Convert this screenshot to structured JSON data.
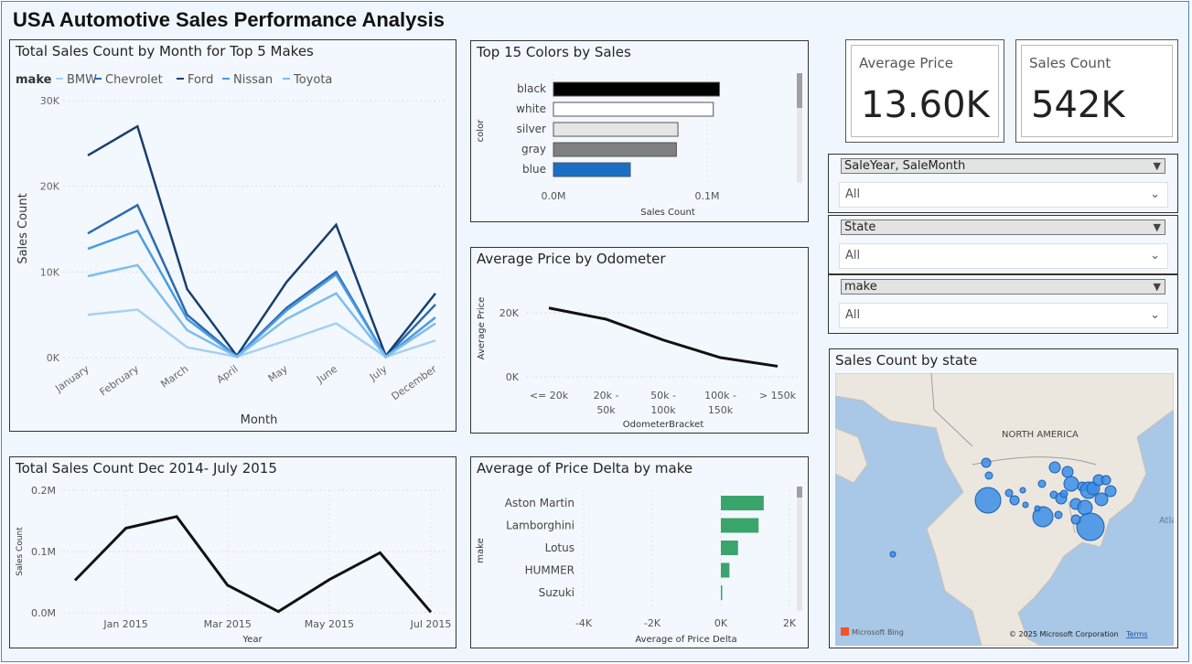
{
  "page": {
    "title": "USA Automotive Sales Performance Analysis"
  },
  "colors": {
    "bmw": "#a6d0f5",
    "chevrolet": "#2b6ab0",
    "ford": "#173f6e",
    "nissan": "#4a9be2",
    "toyota": "#7cbdf0",
    "bar_green": "#3aa56b",
    "map_bubble": "#3b8de8"
  },
  "line_chart": {
    "title": "Total Sales Count by Month for Top 5 Makes",
    "legend_title": "make",
    "y_ticks": [
      "30K",
      "20K",
      "10K",
      "0K"
    ],
    "xlabel": "Month",
    "ylabel": "Sales Count"
  },
  "colors_chart": {
    "title": "Top 15 Colors by Sales",
    "ylabel": "color",
    "xlabel": "Sales Count",
    "x_ticks": [
      "0.0M",
      "0.1M"
    ]
  },
  "odometer_chart": {
    "title": "Average Price by Odometer",
    "ylabel": "Average Price",
    "xlabel": "OdometerBracket",
    "y_ticks": [
      "20K",
      "0K"
    ],
    "x_ticks": [
      [
        "<= 20k"
      ],
      [
        "20k -",
        "50k"
      ],
      [
        "50k -",
        "100k"
      ],
      [
        "100k -",
        "150k"
      ],
      [
        "> 150k"
      ]
    ]
  },
  "timeline_chart": {
    "title": "Total Sales Count Dec 2014- July 2015",
    "ylabel": "Sales Count",
    "xlabel": "Year",
    "y_ticks": [
      "0.2M",
      "0.1M",
      "0.0M"
    ],
    "x_ticks": [
      "Jan 2015",
      "Mar 2015",
      "May 2015",
      "Jul 2015"
    ]
  },
  "delta_chart": {
    "title": "Average of Price Delta by make",
    "ylabel": "make",
    "xlabel": "Average of Price Delta",
    "x_ticks": [
      "-4K",
      "-2K",
      "0K",
      "2K"
    ]
  },
  "cards": {
    "avg_price": {
      "label": "Average Price",
      "value": "13.60K"
    },
    "sales_count": {
      "label": "Sales Count",
      "value": "542K"
    }
  },
  "slicers": [
    {
      "header": "SaleYear, SaleMonth",
      "value": "All"
    },
    {
      "header": "State",
      "value": "All"
    },
    {
      "header": "make",
      "value": "All"
    }
  ],
  "map": {
    "title": "Sales Count by state",
    "region_label": "NORTH AMERICA",
    "edge_label": "Atla",
    "bing": "Microsoft Bing",
    "copyright": "© 2025 Microsoft Corporation",
    "terms": "Terms"
  },
  "chart_data": [
    {
      "type": "line",
      "title": "Total Sales Count by Month for Top 5 Makes",
      "xlabel": "Month",
      "ylabel": "Sales Count",
      "ylim": [
        0,
        30000
      ],
      "categories": [
        "January",
        "February",
        "March",
        "April",
        "May",
        "June",
        "July",
        "December"
      ],
      "series": [
        {
          "name": "BMW",
          "values": [
            5000,
            5600,
            1200,
            100,
            2000,
            4000,
            100,
            2000
          ]
        },
        {
          "name": "Chevrolet",
          "values": [
            14500,
            17800,
            5000,
            100,
            5800,
            10000,
            100,
            6200
          ]
        },
        {
          "name": "Ford",
          "values": [
            23600,
            27000,
            8000,
            200,
            8800,
            15500,
            200,
            7500
          ]
        },
        {
          "name": "Nissan",
          "values": [
            12700,
            14800,
            4500,
            100,
            5500,
            9700,
            100,
            4700
          ]
        },
        {
          "name": "Toyota",
          "values": [
            9500,
            10800,
            3200,
            100,
            4500,
            7500,
            100,
            4000
          ]
        }
      ]
    },
    {
      "type": "bar",
      "title": "Top 15 Colors by Sales",
      "xlabel": "Sales Count",
      "ylabel": "color",
      "xlim": [
        0,
        0.12
      ],
      "categories": [
        "black",
        "white",
        "silver",
        "gray",
        "blue"
      ],
      "values": [
        0.108,
        0.104,
        0.081,
        0.08,
        0.05
      ],
      "colors": [
        "#000000",
        "#ffffff",
        "#e5e5e5",
        "#808080",
        "#1a6fc4"
      ]
    },
    {
      "type": "line",
      "title": "Average Price by Odometer",
      "xlabel": "OdometerBracket",
      "ylabel": "Average Price",
      "ylim": [
        0,
        28000
      ],
      "categories": [
        "<= 20k",
        "20k - 50k",
        "50k - 100k",
        "100k - 150k",
        "> 150k"
      ],
      "values": [
        21500,
        18000,
        11500,
        6000,
        3300
      ]
    },
    {
      "type": "line",
      "title": "Total Sales Count Dec 2014- July 2015",
      "xlabel": "Year",
      "ylabel": "Sales Count",
      "ylim": [
        0,
        0.2
      ],
      "categories": [
        "Dec 2014",
        "Jan 2015",
        "Feb 2015",
        "Mar 2015",
        "Apr 2015",
        "May 2015",
        "Jun 2015",
        "Jul 2015"
      ],
      "values": [
        0.053,
        0.138,
        0.157,
        0.045,
        0.002,
        0.054,
        0.098,
        0.001
      ]
    },
    {
      "type": "bar",
      "title": "Average of Price Delta by make",
      "xlabel": "Average of Price Delta",
      "ylabel": "make",
      "xlim": [
        -4000,
        2000
      ],
      "categories": [
        "Aston Martin",
        "Lamborghini",
        "Lotus",
        "HUMMER",
        "Suzuki"
      ],
      "values": [
        1250,
        1100,
        500,
        250,
        30
      ]
    }
  ]
}
